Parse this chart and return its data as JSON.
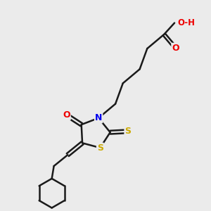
{
  "bg_color": "#ebebeb",
  "atom_colors": {
    "C": "#000000",
    "N": "#0000ee",
    "O": "#ee0000",
    "S": "#ccaa00",
    "H": "#555555"
  },
  "bond_color": "#1a1a1a",
  "bond_width": 1.8,
  "dbo": 0.08
}
